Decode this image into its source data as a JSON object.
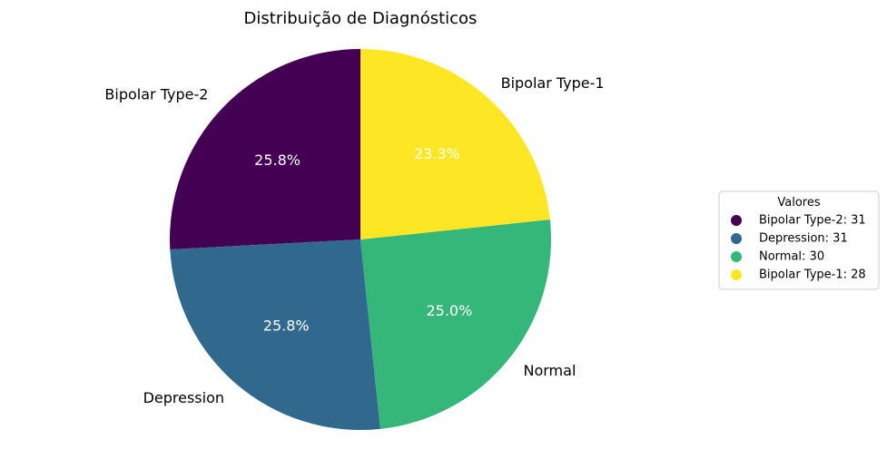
{
  "chart_data": {
    "type": "pie",
    "title": "Distribuição de Diagnósticos",
    "slices": [
      {
        "label": "Bipolar Type-2",
        "value": 31,
        "percent": "25.8%",
        "color": "#440154"
      },
      {
        "label": "Depression",
        "value": 31,
        "percent": "25.8%",
        "color": "#31688e"
      },
      {
        "label": "Normal",
        "value": 30,
        "percent": "25.0%",
        "color": "#35b779"
      },
      {
        "label": "Bipolar Type-1",
        "value": 28,
        "percent": "23.3%",
        "color": "#fde725"
      }
    ],
    "start_angle_deg": 90,
    "direction": "counterclockwise",
    "legend": {
      "title": "Valores",
      "placement": "center-right",
      "entries": [
        "Bipolar Type-2: 31",
        "Depression: 31",
        "Normal: 30",
        "Bipolar Type-1: 28"
      ]
    }
  }
}
